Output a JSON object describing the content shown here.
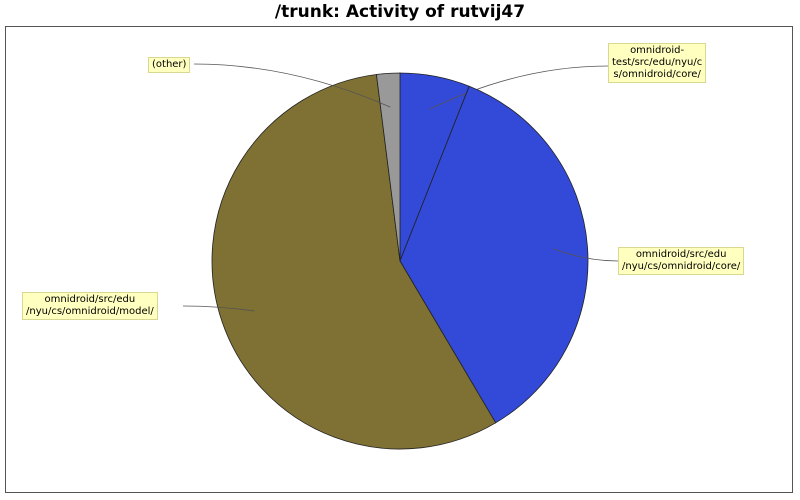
{
  "chart_data": {
    "type": "pie",
    "title": "/trunk: Activity of rutvij47",
    "slices": [
      {
        "label": "omnidroid-\ntest/src/edu/nyu/c\ns/omnidroid/core/",
        "value": 6.0,
        "color": "#3349d8"
      },
      {
        "label": "omnidroid/src/edu\n/nyu/cs/omnidroid/core/",
        "value": 35.5,
        "color": "#3349d8"
      },
      {
        "label": "omnidroid/src/edu\n/nyu/cs/omnidroid/model/",
        "value": 56.5,
        "color": "#7f7033"
      },
      {
        "label": "(other)",
        "value": 2.0,
        "color": "#999999"
      }
    ],
    "start_angle": "12 o'clock",
    "direction": "clockwise"
  }
}
